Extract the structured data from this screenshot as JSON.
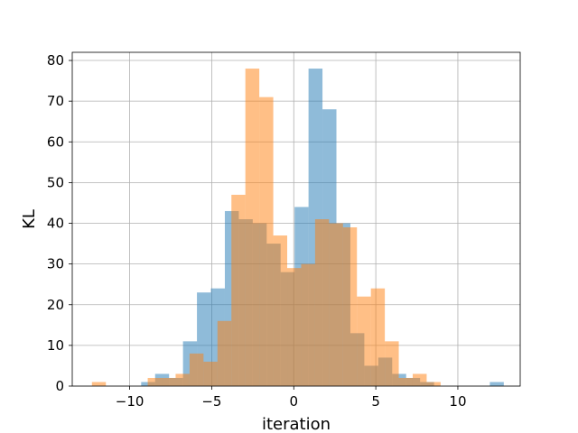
{
  "chart_data": {
    "type": "bar",
    "title": "",
    "xlabel": "iteration",
    "ylabel": "KL",
    "xlim": [
      -13.5,
      13.8
    ],
    "ylim": [
      0,
      82
    ],
    "xticks": [
      -10,
      -5,
      0,
      5,
      10
    ],
    "yticks": [
      0,
      10,
      20,
      30,
      40,
      50,
      60,
      70,
      80
    ],
    "grid": true,
    "legend": "none",
    "series": [
      {
        "color": "#1f77b4",
        "alpha": 0.5,
        "bins": [
          {
            "x0": -9.3,
            "x1": -8.45,
            "count": 1
          },
          {
            "x0": -8.45,
            "x1": -7.6,
            "count": 3
          },
          {
            "x0": -7.6,
            "x1": -6.75,
            "count": 2
          },
          {
            "x0": -6.75,
            "x1": -5.9,
            "count": 11
          },
          {
            "x0": -5.9,
            "x1": -5.05,
            "count": 23
          },
          {
            "x0": -5.05,
            "x1": -4.2,
            "count": 24
          },
          {
            "x0": -4.2,
            "x1": -3.35,
            "count": 43
          },
          {
            "x0": -3.35,
            "x1": -2.5,
            "count": 41
          },
          {
            "x0": -2.5,
            "x1": -1.65,
            "count": 40
          },
          {
            "x0": -1.65,
            "x1": -0.8,
            "count": 35
          },
          {
            "x0": -0.8,
            "x1": 0.05,
            "count": 28
          },
          {
            "x0": 0.05,
            "x1": 0.9,
            "count": 44
          },
          {
            "x0": 0.9,
            "x1": 1.75,
            "count": 78
          },
          {
            "x0": 1.75,
            "x1": 2.6,
            "count": 68
          },
          {
            "x0": 2.6,
            "x1": 3.45,
            "count": 40
          },
          {
            "x0": 3.45,
            "x1": 4.3,
            "count": 13
          },
          {
            "x0": 4.3,
            "x1": 5.15,
            "count": 5
          },
          {
            "x0": 5.15,
            "x1": 6.0,
            "count": 7
          },
          {
            "x0": 6.0,
            "x1": 6.85,
            "count": 3
          },
          {
            "x0": 6.85,
            "x1": 7.7,
            "count": 2
          },
          {
            "x0": 7.7,
            "x1": 8.55,
            "count": 1
          },
          {
            "x0": 11.95,
            "x1": 12.8,
            "count": 1
          }
        ]
      },
      {
        "color": "#ff7f0e",
        "alpha": 0.5,
        "bins": [
          {
            "x0": -12.3,
            "x1": -11.45,
            "count": 1
          },
          {
            "x0": -8.9,
            "x1": -8.05,
            "count": 2
          },
          {
            "x0": -8.05,
            "x1": -7.2,
            "count": 2
          },
          {
            "x0": -7.2,
            "x1": -6.35,
            "count": 3
          },
          {
            "x0": -6.35,
            "x1": -5.5,
            "count": 8
          },
          {
            "x0": -5.5,
            "x1": -4.65,
            "count": 6
          },
          {
            "x0": -4.65,
            "x1": -3.8,
            "count": 16
          },
          {
            "x0": -3.8,
            "x1": -2.95,
            "count": 47
          },
          {
            "x0": -2.95,
            "x1": -2.1,
            "count": 78
          },
          {
            "x0": -2.1,
            "x1": -1.25,
            "count": 71
          },
          {
            "x0": -1.25,
            "x1": -0.4,
            "count": 37
          },
          {
            "x0": -0.4,
            "x1": 0.45,
            "count": 29
          },
          {
            "x0": 0.45,
            "x1": 1.3,
            "count": 30
          },
          {
            "x0": 1.3,
            "x1": 2.15,
            "count": 41
          },
          {
            "x0": 2.15,
            "x1": 3.0,
            "count": 40
          },
          {
            "x0": 3.0,
            "x1": 3.85,
            "count": 39
          },
          {
            "x0": 3.85,
            "x1": 4.7,
            "count": 22
          },
          {
            "x0": 4.7,
            "x1": 5.55,
            "count": 24
          },
          {
            "x0": 5.55,
            "x1": 6.4,
            "count": 11
          },
          {
            "x0": 6.4,
            "x1": 7.25,
            "count": 2
          },
          {
            "x0": 7.25,
            "x1": 8.1,
            "count": 3
          },
          {
            "x0": 8.1,
            "x1": 8.95,
            "count": 1
          }
        ]
      }
    ]
  }
}
